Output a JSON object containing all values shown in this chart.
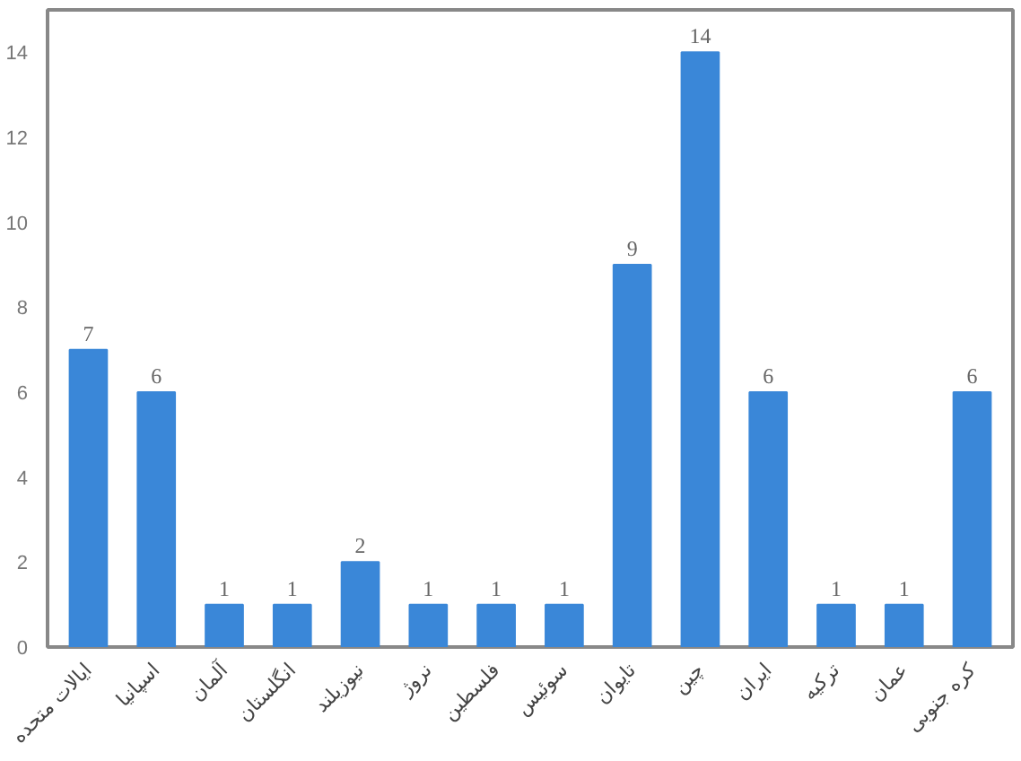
{
  "chart_data": {
    "type": "bar",
    "categories": [
      "ایالات متحده",
      "اسپانیا",
      "آلمان",
      "انگلستان",
      "نیوزیلند",
      "نروژ",
      "فلسطین",
      "سوئیس",
      "تایوان",
      "چین",
      "ایران",
      "ترکیه",
      "عمان",
      "کره جنوبی"
    ],
    "values": [
      7,
      6,
      1,
      1,
      2,
      1,
      1,
      1,
      9,
      14,
      6,
      1,
      1,
      6
    ],
    "color": "#3a87d8",
    "ylim": [
      0,
      15
    ],
    "yticks": [
      0,
      2,
      4,
      6,
      8,
      10,
      12,
      14
    ],
    "grid": false,
    "data_labels": true
  }
}
